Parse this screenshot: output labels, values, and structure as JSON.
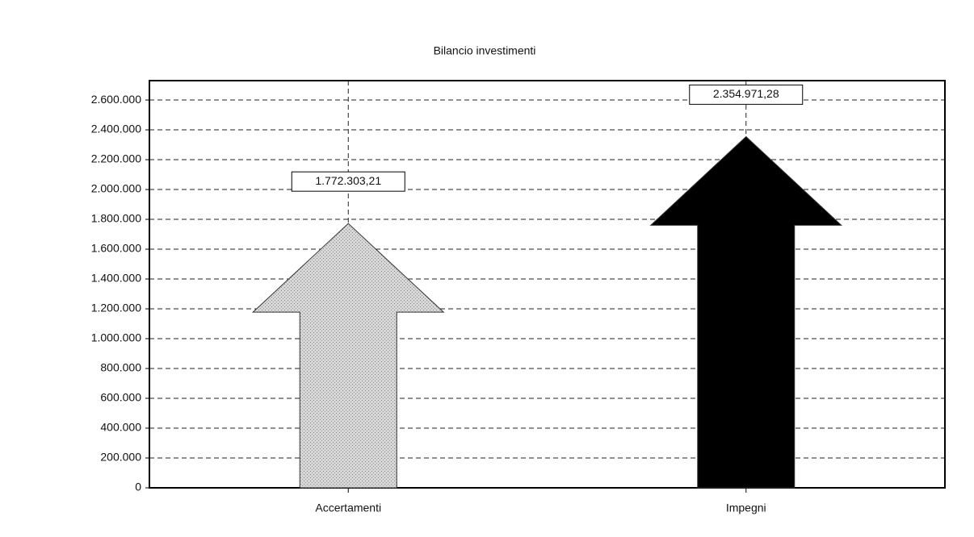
{
  "chart_data": {
    "type": "arrow-bar",
    "title": "Bilancio investimenti",
    "categories": [
      "Accertamenti",
      "Impegni"
    ],
    "values": [
      1772303.21,
      2354971.28
    ],
    "value_labels": [
      "1.772.303,21",
      "2.354.971,28"
    ],
    "colors": [
      "#cfcfcf",
      "#000000"
    ],
    "ylim": [
      0,
      2730000
    ],
    "yticks": [
      0,
      {
        "value": 200000,
        "label": "200.000"
      },
      {
        "value": 400000,
        "label": "400.000"
      },
      {
        "value": 600000,
        "label": "600.000"
      },
      {
        "value": 800000,
        "label": "800.000"
      },
      {
        "value": 1000000,
        "label": "1.000.000"
      },
      {
        "value": 1200000,
        "label": "1.200.000"
      },
      {
        "value": 1400000,
        "label": "1.400.000"
      },
      {
        "value": 1600000,
        "label": "1.600.000"
      },
      {
        "value": 1800000,
        "label": "1.800.000"
      },
      {
        "value": 2000000,
        "label": "2.000.000"
      },
      {
        "value": 2200000,
        "label": "2.200.000"
      },
      {
        "value": 2400000,
        "label": "2.400.000"
      },
      {
        "value": 2600000,
        "label": "2.600.000"
      }
    ],
    "grid": true
  }
}
